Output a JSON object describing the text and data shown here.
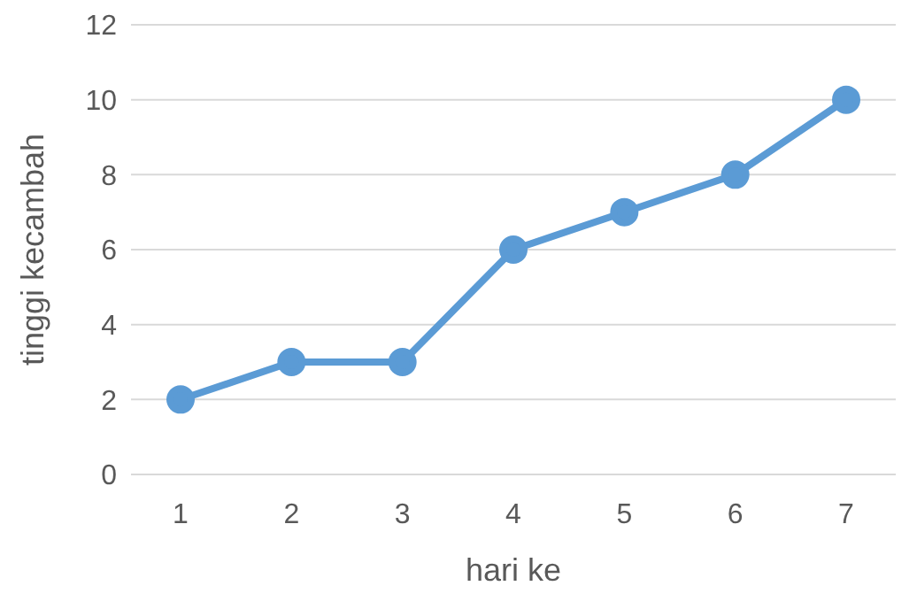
{
  "chart_data": {
    "type": "line",
    "xlabel": "hari ke",
    "ylabel": "tinggi kecambah",
    "categories": [
      "1",
      "2",
      "3",
      "4",
      "5",
      "6",
      "7"
    ],
    "series": [
      {
        "color": "#5b9bd5",
        "values": [
          2,
          3,
          3,
          6,
          7,
          8,
          10
        ]
      }
    ],
    "ylim": [
      0,
      12
    ],
    "yticks": [
      0,
      2,
      4,
      6,
      8,
      10,
      12
    ],
    "grid": "y",
    "marker": "circle",
    "line_style": "solid"
  }
}
